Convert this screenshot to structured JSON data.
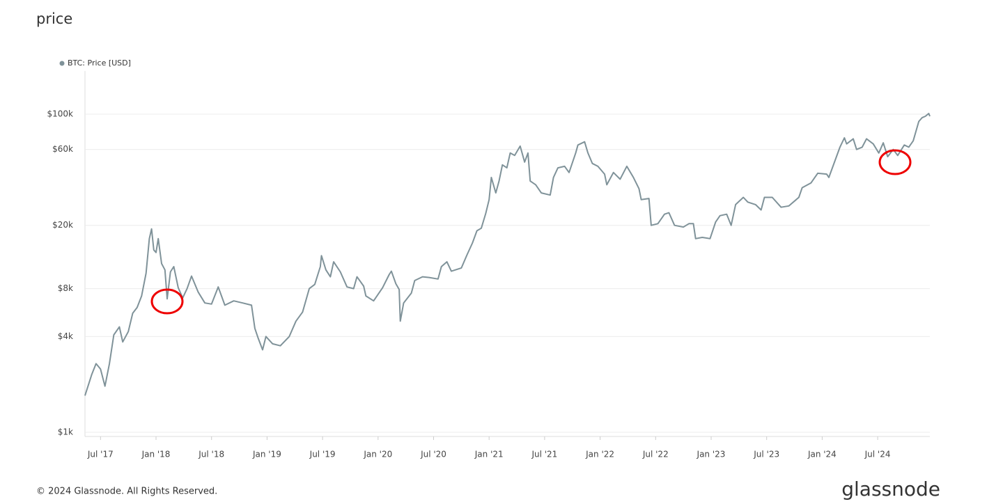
{
  "chart_data": {
    "type": "line",
    "title": "price",
    "legend_position": "top-left",
    "log_scale_y": true,
    "grid": true,
    "x": [
      2017.36,
      2017.42,
      2017.46,
      2017.5,
      2017.54,
      2017.58,
      2017.62,
      2017.67,
      2017.7,
      2017.75,
      2017.79,
      2017.83,
      2017.87,
      2017.91,
      2017.94,
      2017.96,
      2017.98,
      2018.0,
      2018.02,
      2018.05,
      2018.08,
      2018.1,
      2018.13,
      2018.16,
      2018.2,
      2018.24,
      2018.28,
      2018.32,
      2018.38,
      2018.44,
      2018.5,
      2018.56,
      2018.62,
      2018.7,
      2018.78,
      2018.86,
      2018.89,
      2018.92,
      2018.96,
      2018.99,
      2019.05,
      2019.12,
      2019.2,
      2019.26,
      2019.32,
      2019.38,
      2019.43,
      2019.48,
      2019.49,
      2019.53,
      2019.57,
      2019.6,
      2019.66,
      2019.72,
      2019.78,
      2019.81,
      2019.87,
      2019.89,
      2019.96,
      2020.04,
      2020.1,
      2020.12,
      2020.16,
      2020.19,
      2020.2,
      2020.23,
      2020.3,
      2020.33,
      2020.4,
      2020.46,
      2020.54,
      2020.57,
      2020.62,
      2020.66,
      2020.75,
      2020.8,
      2020.85,
      2020.89,
      2020.93,
      2020.97,
      2021.0,
      2021.02,
      2021.06,
      2021.09,
      2021.12,
      2021.16,
      2021.19,
      2021.23,
      2021.28,
      2021.32,
      2021.35,
      2021.37,
      2021.42,
      2021.47,
      2021.55,
      2021.58,
      2021.62,
      2021.68,
      2021.72,
      2021.78,
      2021.8,
      2021.86,
      2021.89,
      2021.93,
      2021.98,
      2022.04,
      2022.06,
      2022.12,
      2022.18,
      2022.24,
      2022.3,
      2022.35,
      2022.37,
      2022.44,
      2022.46,
      2022.52,
      2022.58,
      2022.62,
      2022.67,
      2022.75,
      2022.8,
      2022.84,
      2022.86,
      2022.92,
      2022.99,
      2023.04,
      2023.08,
      2023.14,
      2023.18,
      2023.22,
      2023.29,
      2023.33,
      2023.4,
      2023.45,
      2023.48,
      2023.55,
      2023.63,
      2023.7,
      2023.79,
      2023.82,
      2023.9,
      2023.96,
      2024.04,
      2024.06,
      2024.12,
      2024.16,
      2024.2,
      2024.22,
      2024.28,
      2024.31,
      2024.36,
      2024.4,
      2024.46,
      2024.51,
      2024.55,
      2024.59,
      2024.64,
      2024.68,
      2024.74,
      2024.78,
      2024.82,
      2024.84,
      2024.87,
      2024.9,
      2024.93,
      2024.96,
      2024.97
    ],
    "series": [
      {
        "name": "BTC: Price [USD]",
        "color": "#7f9299",
        "values": [
          1700,
          2300,
          2700,
          2500,
          1950,
          2700,
          4100,
          4600,
          3700,
          4300,
          5600,
          6100,
          7200,
          10000,
          16500,
          19000,
          14000,
          13500,
          16500,
          11500,
          10500,
          6900,
          10200,
          11000,
          8100,
          7000,
          8000,
          9600,
          7600,
          6500,
          6400,
          8200,
          6300,
          6700,
          6500,
          6300,
          4500,
          3900,
          3300,
          4000,
          3600,
          3500,
          4000,
          5000,
          5700,
          8000,
          8500,
          11000,
          12900,
          10500,
          9500,
          11800,
          10200,
          8200,
          8000,
          9500,
          8300,
          7200,
          6700,
          8100,
          9800,
          10300,
          8600,
          7900,
          5000,
          6500,
          7500,
          9000,
          9500,
          9400,
          9200,
          11000,
          11800,
          10300,
          10800,
          13000,
          15500,
          18500,
          19200,
          23800,
          29000,
          40000,
          32000,
          38000,
          48000,
          46000,
          57000,
          55000,
          63000,
          50000,
          57000,
          38000,
          36000,
          32000,
          31000,
          40000,
          46000,
          47000,
          43000,
          57000,
          64000,
          67000,
          57000,
          49000,
          47000,
          42000,
          36000,
          43000,
          39000,
          47000,
          40000,
          34000,
          29000,
          29500,
          20000,
          20500,
          23500,
          24000,
          20000,
          19500,
          20500,
          20500,
          16500,
          16800,
          16500,
          21000,
          23000,
          23500,
          20000,
          27000,
          30000,
          28000,
          27000,
          25000,
          30000,
          30000,
          26000,
          26500,
          30000,
          34500,
          37000,
          42500,
          42000,
          40000,
          52000,
          62000,
          71000,
          65000,
          70000,
          60000,
          62000,
          70000,
          65000,
          57000,
          66000,
          54000,
          60000,
          55000,
          64000,
          62000,
          68000,
          76000,
          90000,
          95000,
          97000,
          101000,
          97000
        ]
      }
    ],
    "xlim": [
      2017.36,
      2024.97
    ],
    "xticks": [
      {
        "value": 2017.5,
        "label": "Jul '17"
      },
      {
        "value": 2018.0,
        "label": "Jan '18"
      },
      {
        "value": 2018.5,
        "label": "Jul '18"
      },
      {
        "value": 2019.0,
        "label": "Jan '19"
      },
      {
        "value": 2019.5,
        "label": "Jul '19"
      },
      {
        "value": 2020.0,
        "label": "Jan '20"
      },
      {
        "value": 2020.5,
        "label": "Jul '20"
      },
      {
        "value": 2021.0,
        "label": "Jan '21"
      },
      {
        "value": 2021.5,
        "label": "Jul '21"
      },
      {
        "value": 2022.0,
        "label": "Jan '22"
      },
      {
        "value": 2022.5,
        "label": "Jul '22"
      },
      {
        "value": 2023.0,
        "label": "Jan '23"
      },
      {
        "value": 2023.5,
        "label": "Jul '23"
      },
      {
        "value": 2024.0,
        "label": "Jan '24"
      },
      {
        "value": 2024.5,
        "label": "Jul '24"
      }
    ],
    "ylim": [
      1000,
      190000
    ],
    "yticks": [
      {
        "value": 1000,
        "label": "$1k"
      },
      {
        "value": 4000,
        "label": "$4k"
      },
      {
        "value": 8000,
        "label": "$8k"
      },
      {
        "value": 20000,
        "label": "$20k"
      },
      {
        "value": 60000,
        "label": "$60k"
      },
      {
        "value": 100000,
        "label": "$100k"
      }
    ]
  },
  "footer": "© 2024 Glassnode. All Rights Reserved.",
  "brand": "glassnode"
}
